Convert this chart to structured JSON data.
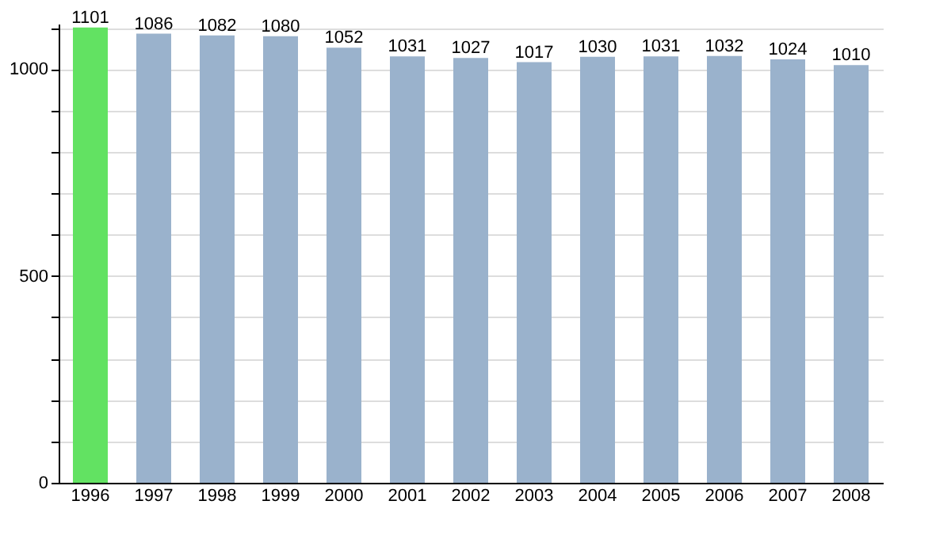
{
  "chart_data": {
    "type": "bar",
    "categories": [
      "1996",
      "1997",
      "1998",
      "1999",
      "2000",
      "2001",
      "2002",
      "2003",
      "2004",
      "2005",
      "2006",
      "2007",
      "2008"
    ],
    "values": [
      1101,
      1086,
      1082,
      1080,
      1052,
      1031,
      1027,
      1017,
      1030,
      1031,
      1032,
      1024,
      1010
    ],
    "colors": [
      "#62e262",
      "#9ab2cc",
      "#9ab2cc",
      "#9ab2cc",
      "#9ab2cc",
      "#9ab2cc",
      "#9ab2cc",
      "#9ab2cc",
      "#9ab2cc",
      "#9ab2cc",
      "#9ab2cc",
      "#9ab2cc",
      "#9ab2cc"
    ],
    "ylim": [
      0,
      1110
    ],
    "yticks": [
      0,
      {
        "value": 100,
        "label": null
      },
      {
        "value": 200,
        "label": null
      },
      {
        "value": 300,
        "label": null
      },
      {
        "value": 400,
        "label": null
      },
      500,
      {
        "value": 600,
        "label": null
      },
      {
        "value": 700,
        "label": null
      },
      {
        "value": 800,
        "label": null
      },
      {
        "value": 900,
        "label": null
      },
      1000,
      {
        "value": 1100,
        "label": null
      }
    ],
    "grid": true,
    "data_labels": true
  }
}
